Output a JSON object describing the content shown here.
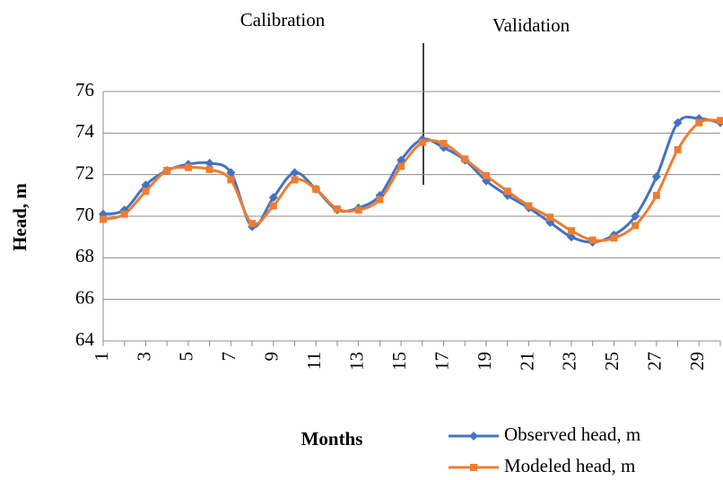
{
  "chart_data": {
    "type": "line",
    "annotations": [
      "Calibration",
      "Validation"
    ],
    "x_label": "Months",
    "y_label": "Head, m",
    "categories": [
      "1",
      null,
      "3",
      null,
      "5",
      null,
      "7",
      null,
      "9",
      null,
      "11",
      null,
      "13",
      null,
      "15",
      null,
      "17",
      null,
      "19",
      null,
      "21",
      null,
      "23",
      null,
      "25",
      null,
      "27",
      null,
      "29",
      null
    ],
    "series": [
      {
        "name": "Observed head, m",
        "color": "#4472c4",
        "marker": "diamond",
        "values": [
          70.1,
          70.3,
          71.5,
          72.2,
          72.5,
          72.55,
          72.1,
          69.5,
          70.9,
          72.1,
          71.3,
          70.3,
          70.4,
          71.0,
          72.7,
          73.7,
          73.3,
          72.7,
          71.7,
          71.0,
          70.4,
          69.7,
          69.0,
          68.75,
          69.1,
          70.0,
          71.9,
          74.5,
          74.7,
          74.5
        ]
      },
      {
        "name": "Modeled head, m",
        "color": "#ed7d31",
        "marker": "square",
        "values": [
          69.85,
          70.1,
          71.2,
          72.2,
          72.35,
          72.25,
          71.75,
          69.65,
          70.5,
          71.75,
          71.3,
          70.35,
          70.3,
          70.8,
          72.4,
          73.55,
          73.5,
          72.75,
          71.95,
          71.2,
          70.5,
          69.95,
          69.3,
          68.85,
          68.95,
          69.55,
          71.0,
          73.2,
          74.5,
          74.6
        ]
      }
    ],
    "ylim": [
      64,
      76
    ],
    "yticks": [
      64,
      66,
      68,
      70,
      72,
      74,
      76
    ],
    "grid": true,
    "smooth": true
  }
}
